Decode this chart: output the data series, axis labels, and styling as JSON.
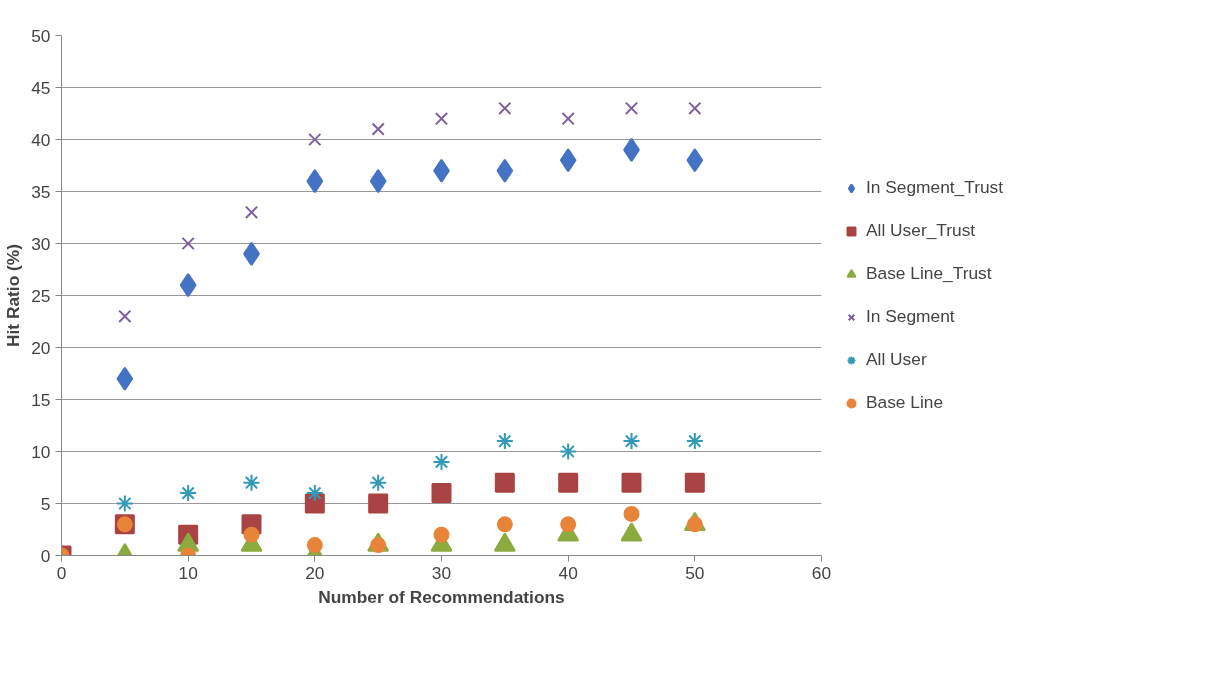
{
  "chart_data": {
    "type": "scatter",
    "xlabel": "Number of Recommendations",
    "ylabel": "Hit Ratio (%)",
    "x": [
      0,
      5,
      10,
      15,
      20,
      25,
      30,
      35,
      40,
      45,
      50
    ],
    "series": [
      {
        "name": "In Segment_Trust",
        "color": "#4472c4",
        "marker": "diamond",
        "values": [
          null,
          17,
          26,
          29,
          36,
          36,
          37,
          37,
          38,
          39,
          38
        ]
      },
      {
        "name": "All User_Trust",
        "color": "#aa4343",
        "marker": "square",
        "values": [
          0,
          3,
          2,
          3,
          5,
          5,
          6,
          7,
          7,
          7,
          7
        ]
      },
      {
        "name": "Base Line_Trust",
        "color": "#8bab3e",
        "marker": "triangle",
        "values": [
          null,
          0,
          1,
          1,
          0,
          1,
          1,
          1,
          2,
          2,
          3
        ]
      },
      {
        "name": "In Segment",
        "color": "#7e60a0",
        "marker": "cross",
        "values": [
          null,
          23,
          30,
          33,
          40,
          41,
          42,
          43,
          42,
          43,
          43
        ]
      },
      {
        "name": "All User",
        "color": "#3399b8",
        "marker": "cross",
        "values": [
          null,
          5,
          6,
          7,
          6,
          7,
          9,
          11,
          10,
          11,
          11
        ]
      },
      {
        "name": "Base Line",
        "color": "#e8843a",
        "marker": "circle",
        "values": [
          0,
          3,
          0,
          2,
          1,
          1,
          2,
          3,
          3,
          4,
          3
        ]
      }
    ],
    "xlim": [
      0,
      60
    ],
    "xticks": [
      0,
      10,
      20,
      30,
      40,
      50,
      60
    ],
    "ylim": [
      0,
      50
    ],
    "yticks": [
      0,
      5,
      10,
      15,
      20,
      25,
      30,
      35,
      40,
      45,
      50
    ],
    "grid": "y",
    "legend": "right"
  }
}
